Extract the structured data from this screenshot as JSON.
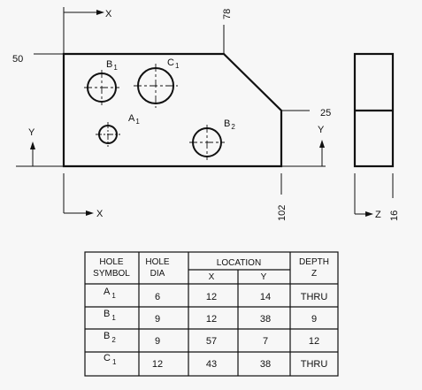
{
  "drawing": {
    "axis_x": "X",
    "axis_y": "Y",
    "axis_z": "Z",
    "dim_top": "78",
    "dim_left": "50",
    "dim_right": "25",
    "dim_bottom": "102",
    "dim_depth": "16",
    "holes": [
      {
        "letter": "B",
        "sub": "1"
      },
      {
        "letter": "C",
        "sub": "1"
      },
      {
        "letter": "A",
        "sub": "1"
      },
      {
        "letter": "B",
        "sub": "2"
      }
    ]
  },
  "table": {
    "headers": {
      "symbol": [
        "HOLE",
        "SYMBOL"
      ],
      "dia": [
        "HOLE",
        "DIA"
      ],
      "location": "LOCATION",
      "loc_x": "X",
      "loc_y": "Y",
      "depth": [
        "DEPTH",
        "Z"
      ]
    },
    "rows": [
      {
        "letter": "A",
        "sub": "1",
        "dia": "6",
        "x": "12",
        "y": "14",
        "z": "THRU"
      },
      {
        "letter": "B",
        "sub": "1",
        "dia": "9",
        "x": "12",
        "y": "38",
        "z": "9"
      },
      {
        "letter": "B",
        "sub": "2",
        "dia": "9",
        "x": "57",
        "y": "7",
        "z": "12"
      },
      {
        "letter": "C",
        "sub": "1",
        "dia": "12",
        "x": "43",
        "y": "38",
        "z": "THRU"
      }
    ]
  }
}
